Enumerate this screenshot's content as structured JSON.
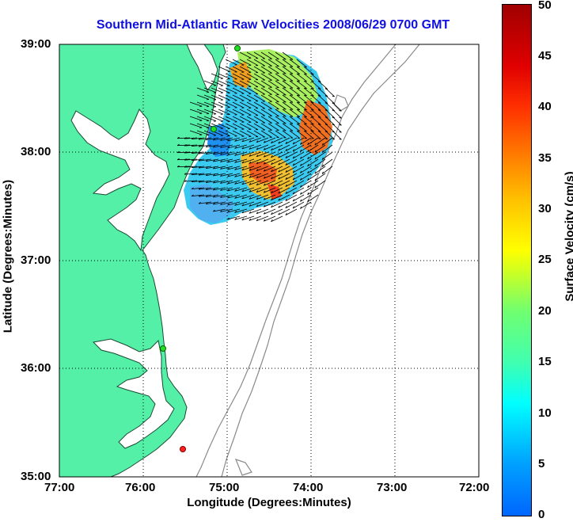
{
  "title": "Southern Mid-Atlantic Raw Velocities 2008/06/29 0700 GMT",
  "x_axis": {
    "label": "Longitude (Degrees:Minutes)",
    "ticks": [
      "77:00",
      "76:00",
      "75:00",
      "74:00",
      "73:00",
      "72:00"
    ]
  },
  "y_axis": {
    "label": "Latitude (Degrees:Minutes)",
    "ticks": [
      "39:00",
      "38:00",
      "37:00",
      "36:00",
      "35:00"
    ]
  },
  "colorbar": {
    "label": "Surface Velocity (cm/s)",
    "ticks": [
      "50",
      "45",
      "40",
      "35",
      "30",
      "25",
      "20",
      "15",
      "10",
      "5",
      "0"
    ],
    "range": [
      0,
      50
    ]
  },
  "colors": {
    "land": "#55f0a8",
    "water": "#ffffff",
    "bathymetry": "#8a8a8a",
    "title": "#1010e0",
    "station_green": "#22dd22",
    "station_red": "#ff2020"
  },
  "map": {
    "lon_range": [
      -77,
      -72
    ],
    "lat_range": [
      35,
      39
    ],
    "grid": true,
    "stations": [
      {
        "color": "green",
        "lon": -74.88,
        "lat": 38.94
      },
      {
        "color": "green",
        "lon": -75.16,
        "lat": 38.22
      },
      {
        "color": "green",
        "lon": -75.57,
        "lat": 36.18
      },
      {
        "color": "red",
        "lon": -75.52,
        "lat": 35.25
      }
    ]
  }
}
